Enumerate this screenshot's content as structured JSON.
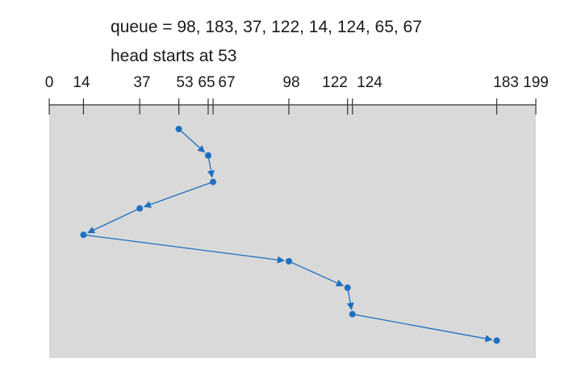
{
  "caption": {
    "queue_line": "queue = 98, 183, 37, 122, 14, 124, 65, 67",
    "head_line": "head starts at 53"
  },
  "colors": {
    "path": "#1f6fbf",
    "panel": "#d9d9d9",
    "axis": "#333333"
  },
  "chart_data": {
    "type": "line",
    "axis_min": 0,
    "axis_max": 199,
    "tick_values": [
      0,
      14,
      37,
      53,
      65,
      67,
      98,
      122,
      124,
      183,
      199
    ],
    "tick_labels": [
      "0",
      "14",
      "37",
      "53",
      "65",
      "67",
      "98",
      "122",
      "124",
      "183",
      "199"
    ],
    "visit_order": [
      53,
      65,
      67,
      37,
      14,
      98,
      122,
      124,
      183
    ]
  }
}
